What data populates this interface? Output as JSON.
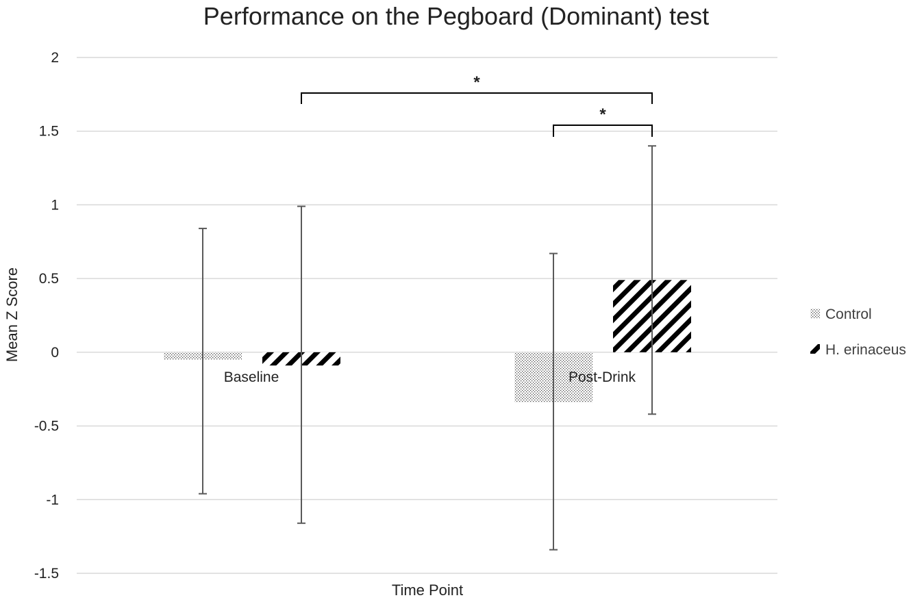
{
  "chart_data": {
    "type": "bar",
    "title": "Performance on the Pegboard (Dominant) test",
    "xlabel": "Time Point",
    "ylabel": "Mean Z Score",
    "ylim": [
      -1.5,
      2
    ],
    "yticks": [
      2,
      1.5,
      1,
      0.5,
      0,
      -0.5,
      -1,
      -1.5
    ],
    "ytick_labels": [
      "2",
      "1.5",
      "1",
      "0.5",
      "0",
      "-0.5",
      "-1",
      "-1.5"
    ],
    "categories": [
      "Baseline",
      "Post-Drink"
    ],
    "series": [
      {
        "name": "Control",
        "pattern": "dotted",
        "values": [
          -0.05,
          -0.34
        ],
        "error_low": [
          -0.96,
          -1.34
        ],
        "error_high": [
          0.84,
          0.67
        ]
      },
      {
        "name": "H. erinaceus",
        "pattern": "diagonal-stripes",
        "values": [
          -0.09,
          0.49
        ],
        "error_low": [
          -1.16,
          -0.42
        ],
        "error_high": [
          0.99,
          1.4
        ]
      }
    ],
    "significance": [
      {
        "label": "*",
        "from": {
          "series": 1,
          "category": 0
        },
        "to": {
          "series": 1,
          "category": 1
        }
      },
      {
        "label": "*",
        "from": {
          "series": 0,
          "category": 1
        },
        "to": {
          "series": 1,
          "category": 1
        }
      }
    ],
    "grid": true,
    "legend_position": "right",
    "colors": {
      "gridline": "#d9d9d9",
      "bar": "#000000",
      "error": "#595959",
      "text": "#222222"
    }
  }
}
